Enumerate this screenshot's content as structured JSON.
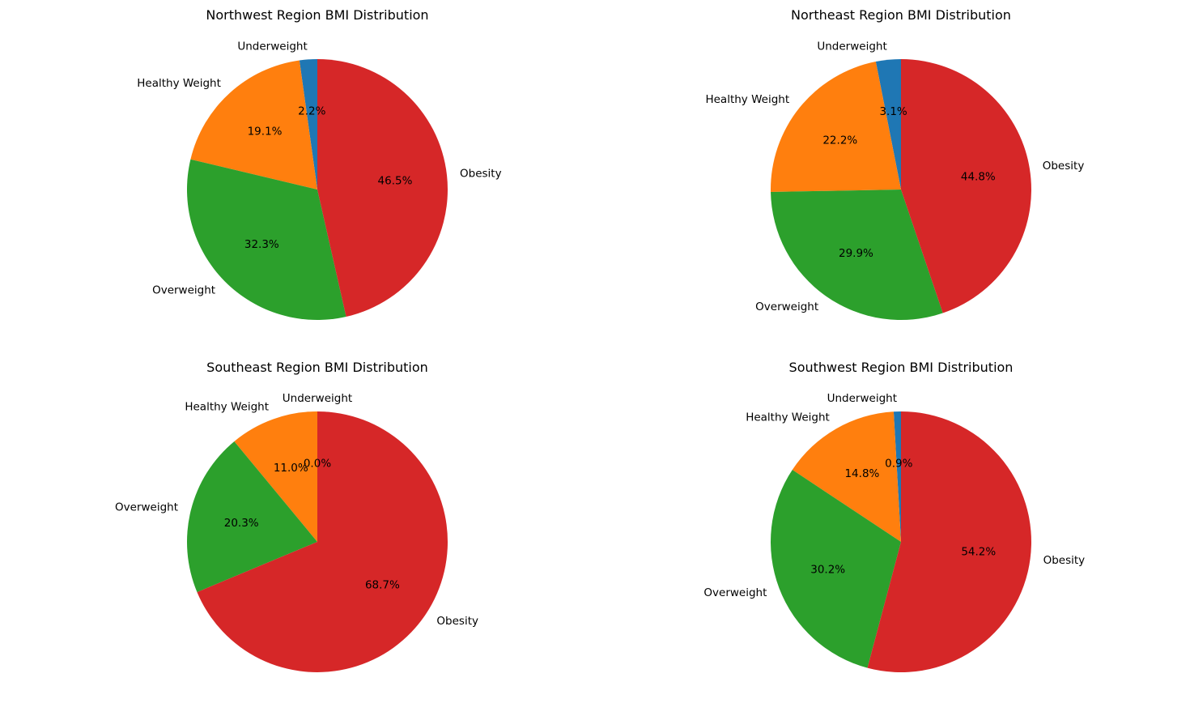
{
  "chart_data": [
    {
      "type": "pie",
      "title": "Northwest Region BMI Distribution",
      "categories": [
        "Underweight",
        "Healthy Weight",
        "Overweight",
        "Obesity"
      ],
      "values": [
        2.2,
        19.1,
        32.3,
        46.5
      ],
      "value_labels": [
        "2.2%",
        "19.1%",
        "32.3%",
        "46.5%"
      ],
      "colors": [
        "#1f77b4",
        "#ff7f0e",
        "#2ca02c",
        "#d62728"
      ]
    },
    {
      "type": "pie",
      "title": "Northeast Region BMI Distribution",
      "categories": [
        "Underweight",
        "Healthy Weight",
        "Overweight",
        "Obesity"
      ],
      "values": [
        3.1,
        22.2,
        29.9,
        44.8
      ],
      "value_labels": [
        "3.1%",
        "22.2%",
        "29.9%",
        "44.8%"
      ],
      "colors": [
        "#1f77b4",
        "#ff7f0e",
        "#2ca02c",
        "#d62728"
      ]
    },
    {
      "type": "pie",
      "title": "Southeast Region BMI Distribution",
      "categories": [
        "Underweight",
        "Healthy Weight",
        "Overweight",
        "Obesity"
      ],
      "values": [
        0.0,
        11.0,
        20.3,
        68.7
      ],
      "value_labels": [
        "0.0%",
        "11.0%",
        "20.3%",
        "68.7%"
      ],
      "colors": [
        "#1f77b4",
        "#ff7f0e",
        "#2ca02c",
        "#d62728"
      ]
    },
    {
      "type": "pie",
      "title": "Southwest Region BMI Distribution",
      "categories": [
        "Underweight",
        "Healthy Weight",
        "Overweight",
        "Obesity"
      ],
      "values": [
        0.9,
        14.8,
        30.2,
        54.2
      ],
      "value_labels": [
        "0.9%",
        "14.8%",
        "30.2%",
        "54.2%"
      ],
      "colors": [
        "#1f77b4",
        "#ff7f0e",
        "#2ca02c",
        "#d62728"
      ]
    }
  ]
}
